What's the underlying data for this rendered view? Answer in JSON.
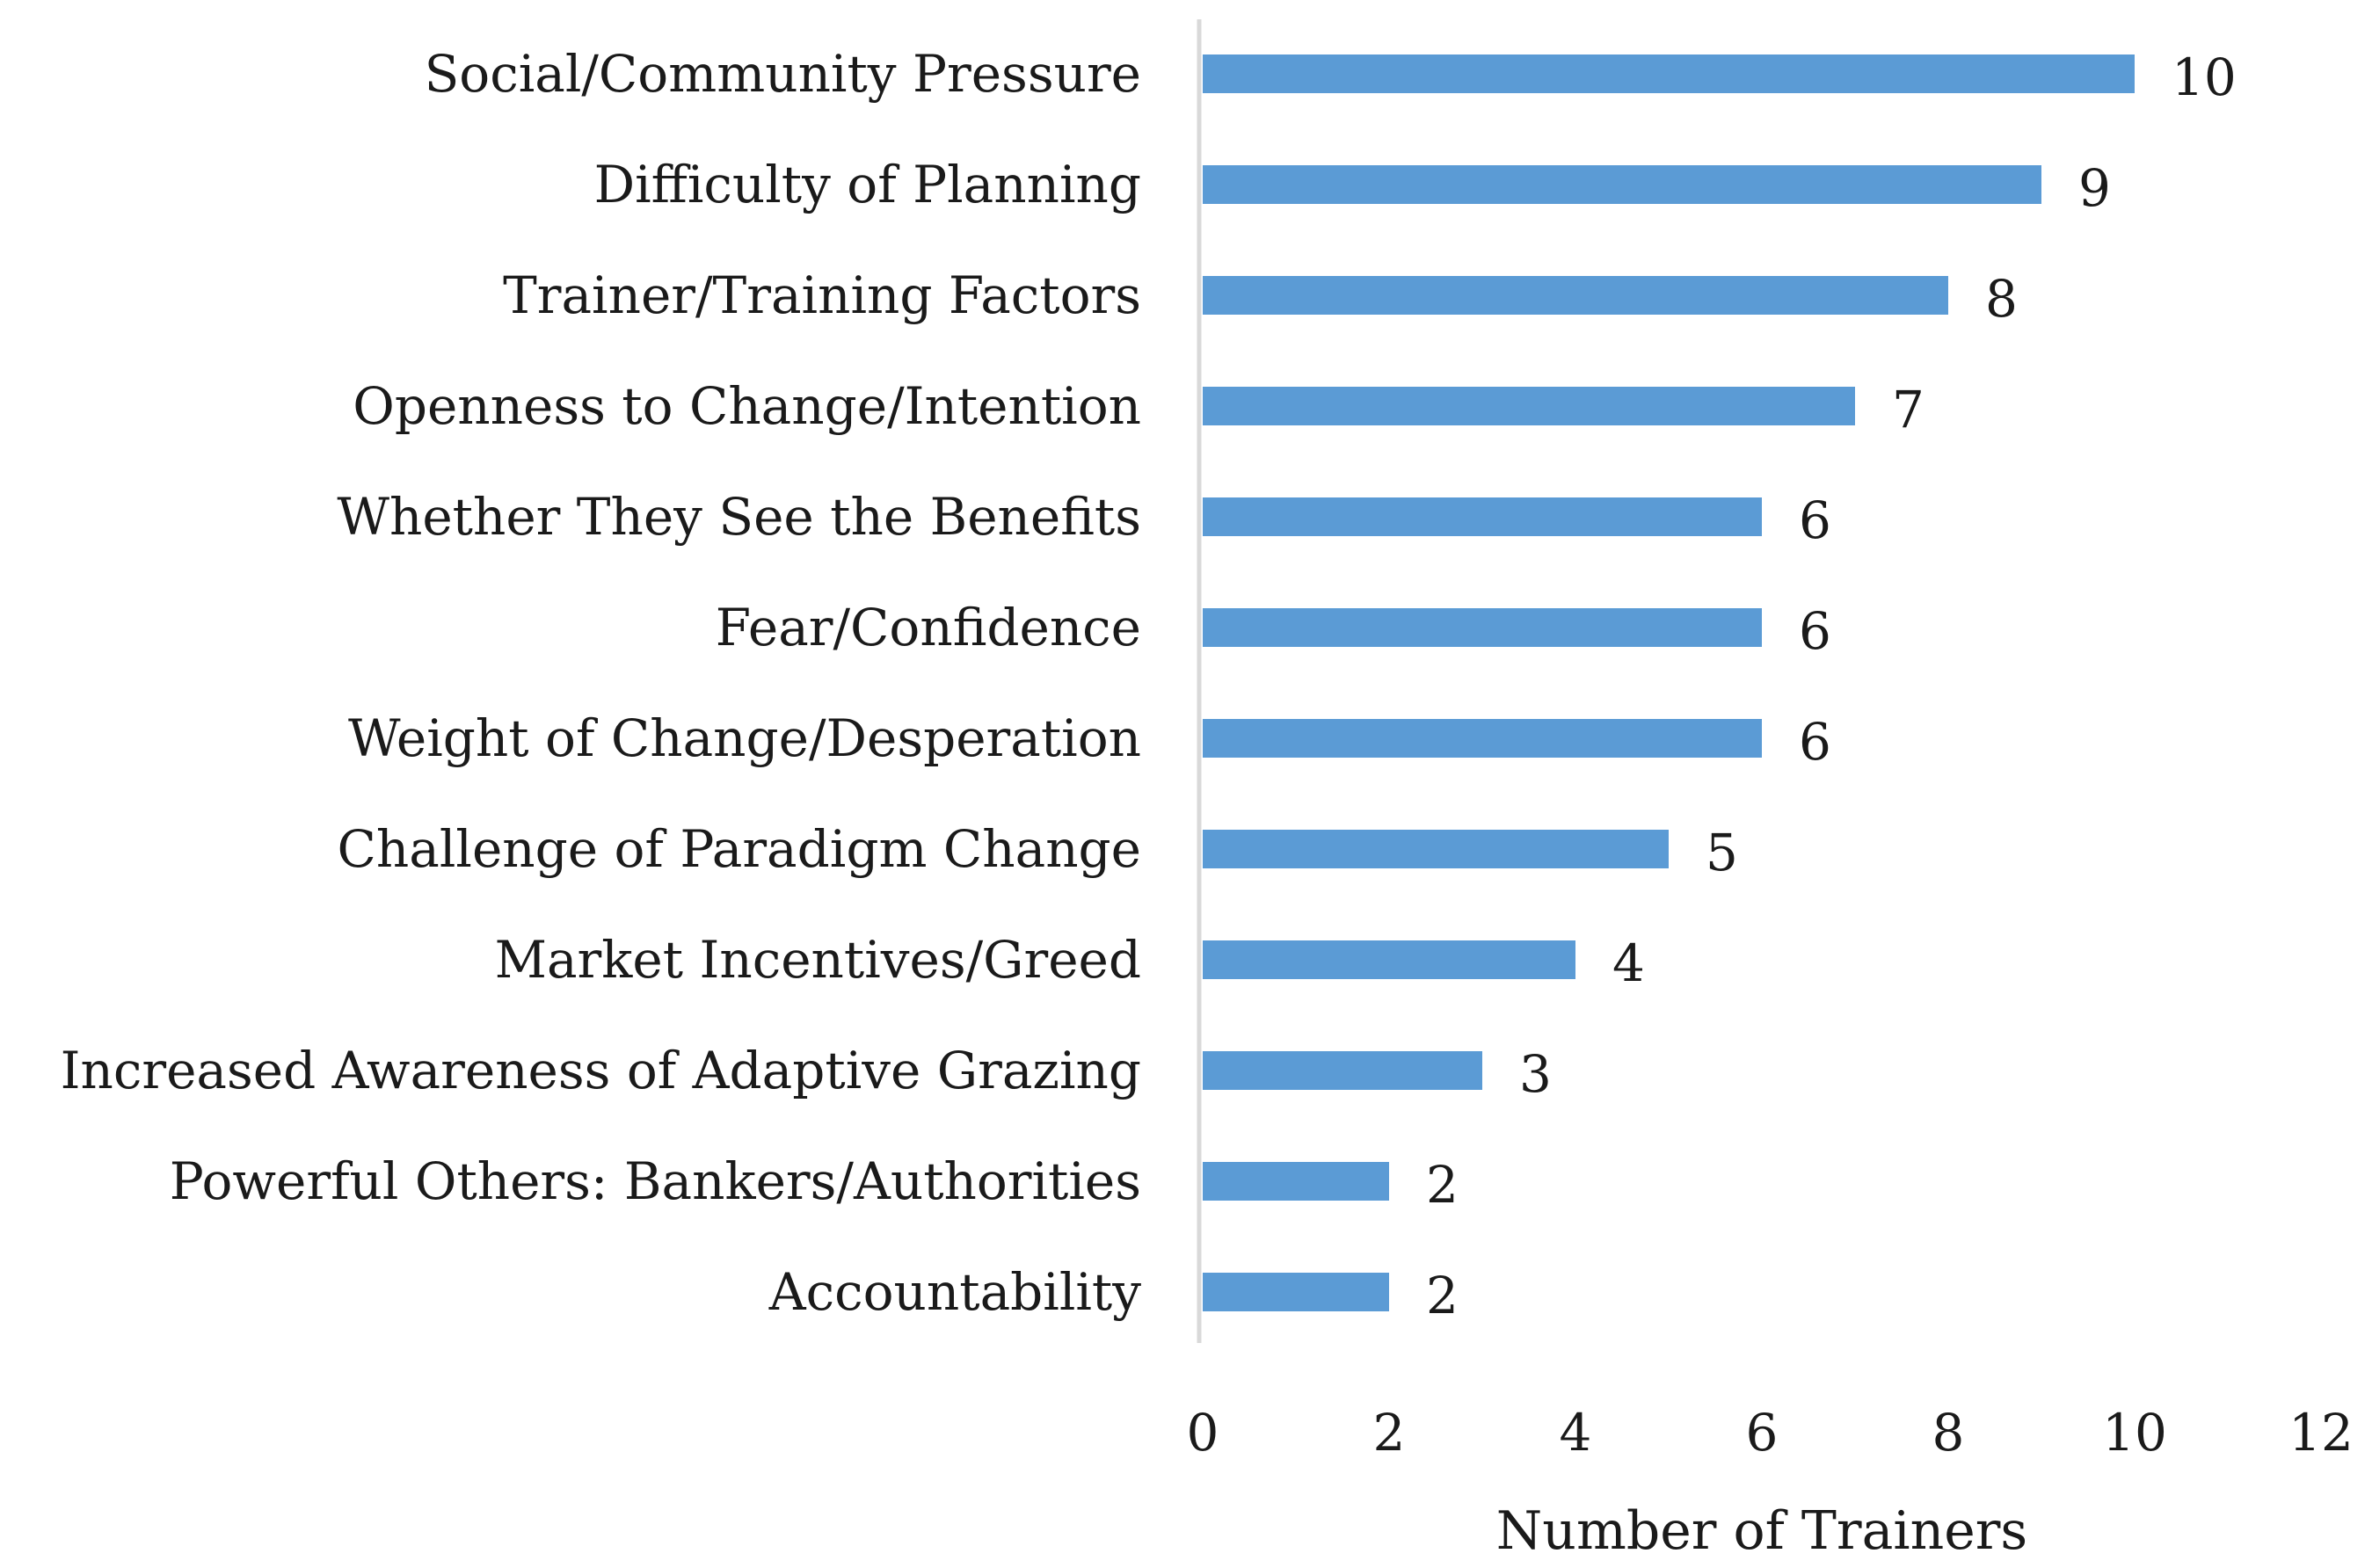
{
  "chart_data": {
    "type": "bar",
    "orientation": "horizontal",
    "title": "",
    "xlabel": "Number of Trainers",
    "ylabel": "",
    "xlim": [
      0,
      12
    ],
    "xticks": [
      0,
      2,
      4,
      6,
      8,
      10,
      12
    ],
    "grid": false,
    "bar_color": "#5b9bd5",
    "axis_color": "#d9d9d9",
    "categories": [
      "Social/Community Pressure",
      "Difficulty of Planning",
      "Trainer/Training Factors",
      "Openness to Change/Intention",
      "Whether They See the Benefits",
      "Fear/Confidence",
      "Weight of Change/Desperation",
      "Challenge of Paradigm Change",
      "Market Incentives/Greed",
      "Increased Awareness of Adaptive Grazing",
      "Powerful Others: Bankers/Authorities",
      "Accountability"
    ],
    "values": [
      10,
      9,
      8,
      7,
      6,
      6,
      6,
      5,
      4,
      3,
      2,
      2
    ]
  }
}
